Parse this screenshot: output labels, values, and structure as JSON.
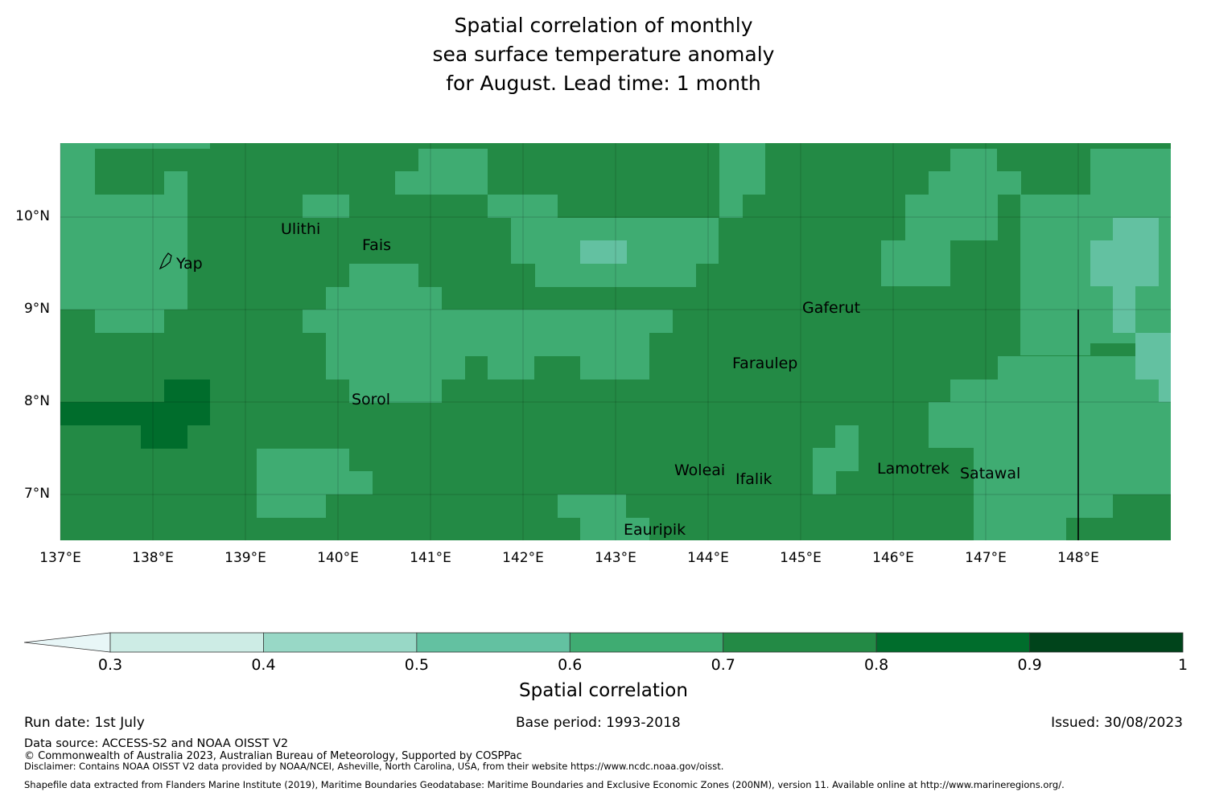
{
  "title": {
    "line1": "Spatial correlation of monthly",
    "line2": "sea surface temperature anomaly",
    "line3": "for August. Lead time: 1 month"
  },
  "map": {
    "lon_range": [
      137.0,
      149.0
    ],
    "lat_range": [
      6.5,
      10.8
    ],
    "cell_size_deg": 0.25,
    "x_ticks": [
      "137°E",
      "138°E",
      "139°E",
      "140°E",
      "141°E",
      "142°E",
      "143°E",
      "144°E",
      "145°E",
      "146°E",
      "147°E",
      "148°E"
    ],
    "y_ticks": [
      "10°N",
      "9°N",
      "8°N",
      "7°N"
    ],
    "places": [
      {
        "name": "Yap",
        "lon": 138.25,
        "lat": 9.5
      },
      {
        "name": "Ulithi",
        "lon": 139.75,
        "lat": 9.85
      },
      {
        "name": "Fais",
        "lon": 140.5,
        "lat": 9.7
      },
      {
        "name": "Gaferut",
        "lon": 145.35,
        "lat": 9.0
      },
      {
        "name": "Faraulep",
        "lon": 144.55,
        "lat": 8.4
      },
      {
        "name": "Sorol",
        "lon": 140.35,
        "lat": 8.05
      },
      {
        "name": "Woleai",
        "lon": 143.9,
        "lat": 7.28
      },
      {
        "name": "Ifalik",
        "lon": 144.45,
        "lat": 7.18
      },
      {
        "name": "Lamotrek",
        "lon": 146.25,
        "lat": 7.3
      },
      {
        "name": "Satawal",
        "lon": 147.05,
        "lat": 7.25
      },
      {
        "name": "Eauripik",
        "lon": 143.4,
        "lat": 6.6
      }
    ],
    "boundary_line": {
      "lon": 148.0,
      "lat_from": 6.5,
      "lat_to": 9.0
    }
  },
  "colorbar": {
    "label": "Spatial correlation",
    "ticks": [
      "0.3",
      "0.4",
      "0.5",
      "0.6",
      "0.7",
      "0.8",
      "0.9",
      "1"
    ],
    "colors": [
      "#e8f6f7",
      "#cdece5",
      "#98d8c6",
      "#63c1a1",
      "#3fac72",
      "#238a45",
      "#006d2c",
      "#00441b"
    ]
  },
  "footer": {
    "run_date": "Run date: 1st July",
    "base_period": "Base period: 1993-2018",
    "issued": "Issued: 30/08/2023",
    "data_source": "Data source: ACCESS-S2 and NOAA OISST V2",
    "copyright": "© Commonwealth of Australia 2023, Australian Bureau of Meteorology, Supported by COSPPac",
    "disclaimer": "Disclaimer: Contains NOAA OISST V2 data provided by NOAA/NCEI, Asheville, North Carolina, USA, from their website https://www.ncdc.noaa.gov/oisst.",
    "shapefile": "Shapefile data extracted from Flanders Marine Institute (2019), Maritime Boundaries Geodatabase: Maritime Boundaries and Exclusive Economic Zones (200NM), version 11. Available online at http://www.marineregions.org/."
  }
}
